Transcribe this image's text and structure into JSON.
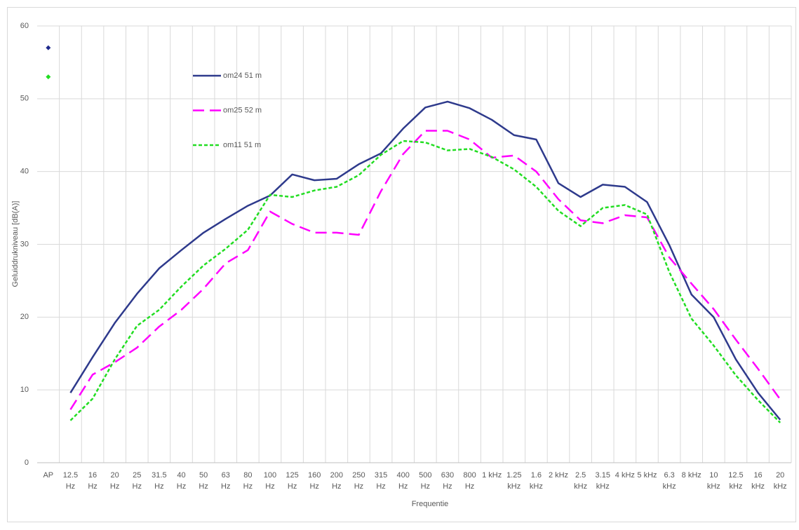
{
  "chart_data": {
    "type": "line",
    "x_label": "Frequentie",
    "y_label": "Geluiddrukniveau [dB(A)]",
    "categories": [
      "AP",
      "12.5 Hz",
      "16 Hz",
      "20 Hz",
      "25 Hz",
      "31.5 Hz",
      "40 Hz",
      "50 Hz",
      "63 Hz",
      "80 Hz",
      "100 Hz",
      "125 Hz",
      "160 Hz",
      "200 Hz",
      "250 Hz",
      "315 Hz",
      "400 Hz",
      "500 Hz",
      "630 Hz",
      "800 Hz",
      "1 kHz",
      "1.25 kHz",
      "1.6 kHz",
      "2 kHz",
      "2.5 kHz",
      "3.15 kHz",
      "4 kHz",
      "5 kHz",
      "6.3 kHz",
      "8 kHz",
      "10 kHz",
      "12.5 kHz",
      "16 kHz",
      "20 kHz"
    ],
    "series": [
      {
        "name": "om24 51 m",
        "color": "#2e3a8c",
        "dash": "solid",
        "values": [
          null,
          9.6,
          14.5,
          19.2,
          23.2,
          26.7,
          29.2,
          31.6,
          33.5,
          35.3,
          36.7,
          39.6,
          38.8,
          39.0,
          41.0,
          42.5,
          45.9,
          48.8,
          49.6,
          48.7,
          47.1,
          45.0,
          44.4,
          38.4,
          36.5,
          38.2,
          37.9,
          35.8,
          29.9,
          23.1,
          20.0,
          14.2,
          9.6,
          5.9
        ]
      },
      {
        "name": "om25 52 m",
        "color": "#ff00ff",
        "dash": "dashed",
        "values": [
          null,
          7.3,
          12.1,
          13.8,
          15.8,
          18.7,
          21.0,
          23.9,
          27.4,
          29.2,
          34.5,
          32.8,
          31.6,
          31.6,
          31.3,
          37.3,
          42.4,
          45.6,
          45.6,
          44.4,
          41.9,
          42.2,
          40.0,
          36.2,
          33.3,
          32.9,
          34.0,
          33.7,
          28.2,
          24.6,
          21.1,
          16.9,
          12.9,
          8.7
        ]
      },
      {
        "name": "om11 51 m",
        "color": "#22dd22",
        "dash": "dotted",
        "values": [
          null,
          5.8,
          8.8,
          14.2,
          18.8,
          21.0,
          24.2,
          27.1,
          29.4,
          32.0,
          36.8,
          36.5,
          37.4,
          37.9,
          39.5,
          42.3,
          44.2,
          44.0,
          42.9,
          43.1,
          42.0,
          40.3,
          37.9,
          34.6,
          32.5,
          35.0,
          35.4,
          34.1,
          26.2,
          19.8,
          16.1,
          12.0,
          8.6,
          5.5
        ]
      }
    ],
    "markers": [
      {
        "category": 0,
        "color": "#1f2a8c",
        "value": 57
      },
      {
        "category": 0,
        "color": "#22dd22",
        "value": 53
      }
    ],
    "ylim": [
      0,
      60
    ],
    "yticks": [
      0,
      10,
      20,
      30,
      40,
      50,
      60
    ],
    "grid": true
  }
}
